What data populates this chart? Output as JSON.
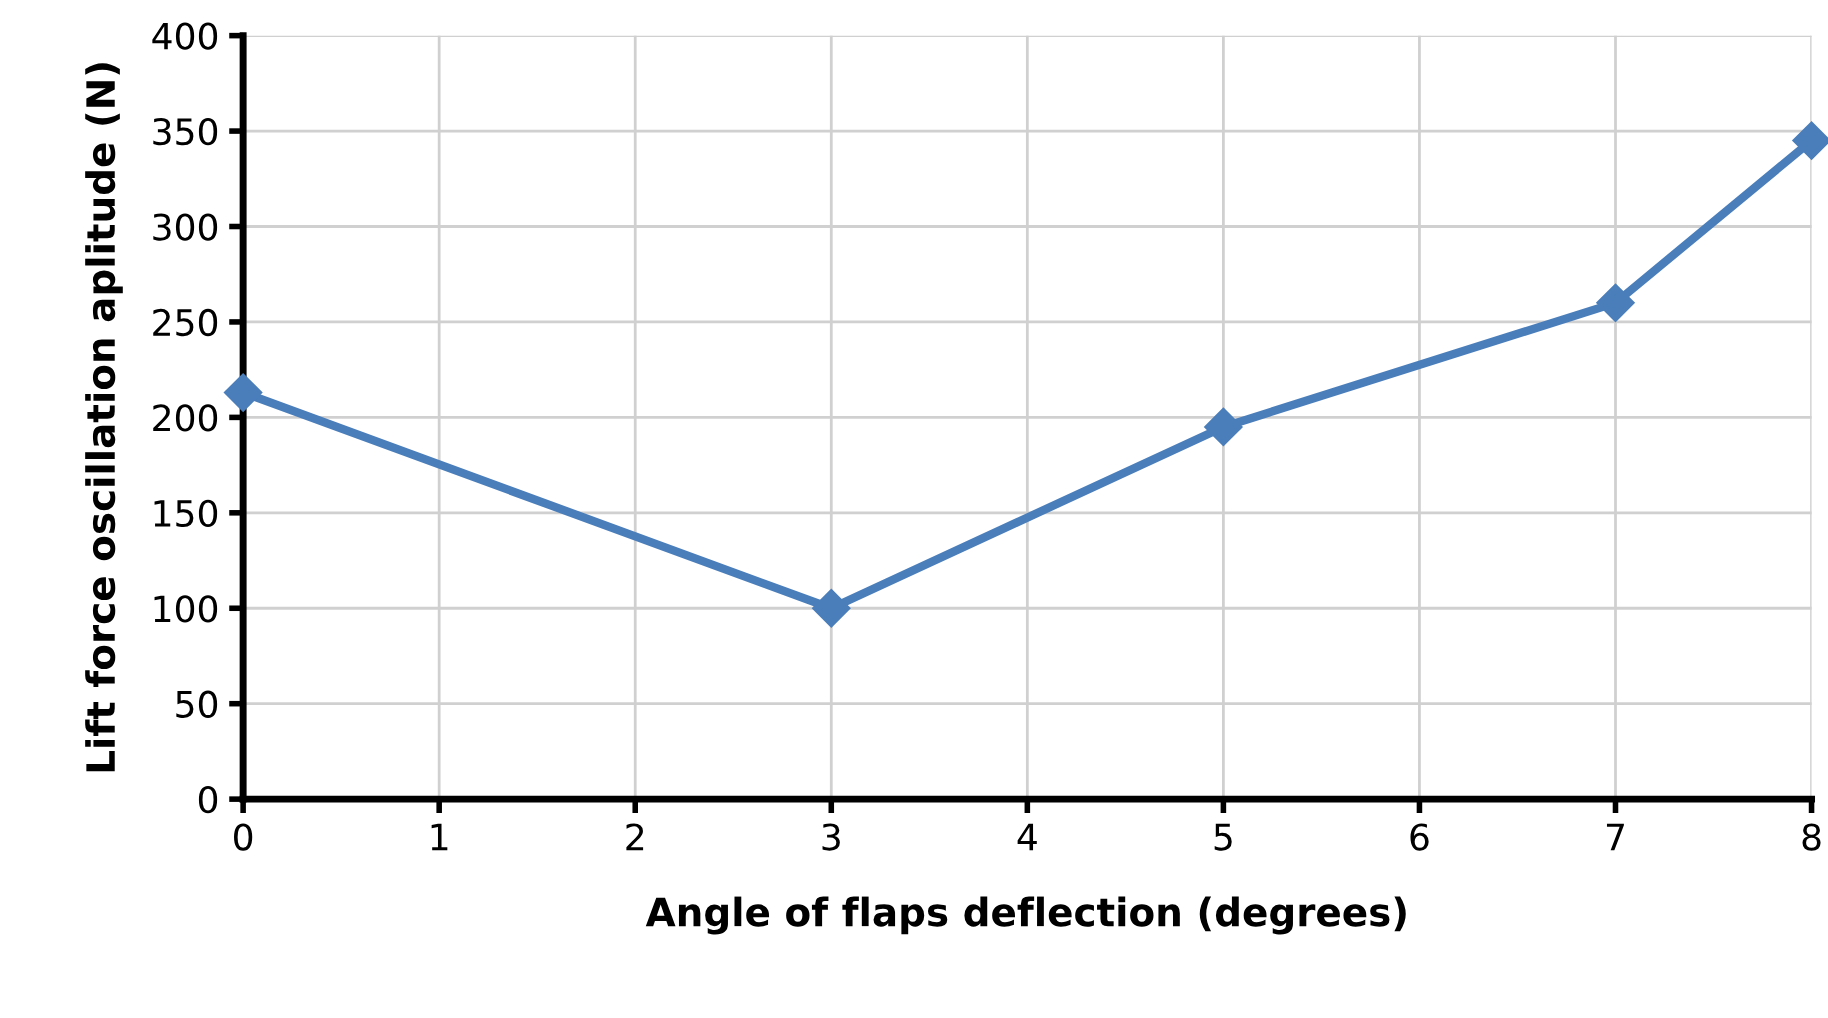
{
  "chart_data": {
    "type": "line",
    "xlabel": "Angle of flaps deflection (degrees)",
    "ylabel": "Lift force oscillation aplitude (N)",
    "x": [
      0,
      3,
      5,
      7,
      8
    ],
    "series": [
      {
        "color": "#4a7ebb",
        "values": [
          213,
          100,
          195,
          260,
          345
        ]
      }
    ],
    "xlim": [
      0,
      8
    ],
    "xticks": [
      0,
      1,
      2,
      3,
      4,
      5,
      6,
      7,
      8
    ],
    "ylim": [
      0,
      400
    ],
    "yticks": [
      0,
      50,
      100,
      150,
      200,
      250,
      300,
      350,
      400
    ],
    "grid": true,
    "marker": "diamond",
    "line_style": "solid",
    "legend": false
  }
}
